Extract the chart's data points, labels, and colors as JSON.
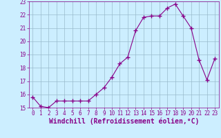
{
  "x": [
    0,
    1,
    2,
    3,
    4,
    5,
    6,
    7,
    8,
    9,
    10,
    11,
    12,
    13,
    14,
    15,
    16,
    17,
    18,
    19,
    20,
    21,
    22,
    23
  ],
  "y": [
    15.8,
    15.1,
    15.0,
    15.5,
    15.5,
    15.5,
    15.5,
    15.5,
    16.0,
    16.5,
    17.3,
    18.3,
    18.8,
    20.8,
    21.8,
    21.9,
    21.9,
    22.5,
    22.8,
    21.9,
    21.0,
    18.6,
    17.1,
    18.7
  ],
  "line_color": "#880088",
  "marker": "+",
  "marker_size": 4,
  "marker_lw": 1.0,
  "bg_color": "#cceeff",
  "grid_color": "#99bbcc",
  "xlabel": "Windchill (Refroidissement éolien,°C)",
  "text_color": "#880088",
  "ylim": [
    15,
    23
  ],
  "xlim": [
    -0.5,
    23.5
  ],
  "yticks": [
    15,
    16,
    17,
    18,
    19,
    20,
    21,
    22,
    23
  ],
  "xticks": [
    0,
    1,
    2,
    3,
    4,
    5,
    6,
    7,
    8,
    9,
    10,
    11,
    12,
    13,
    14,
    15,
    16,
    17,
    18,
    19,
    20,
    21,
    22,
    23
  ],
  "tick_fontsize": 5.5,
  "xlabel_fontsize": 7.0,
  "linewidth": 0.8
}
